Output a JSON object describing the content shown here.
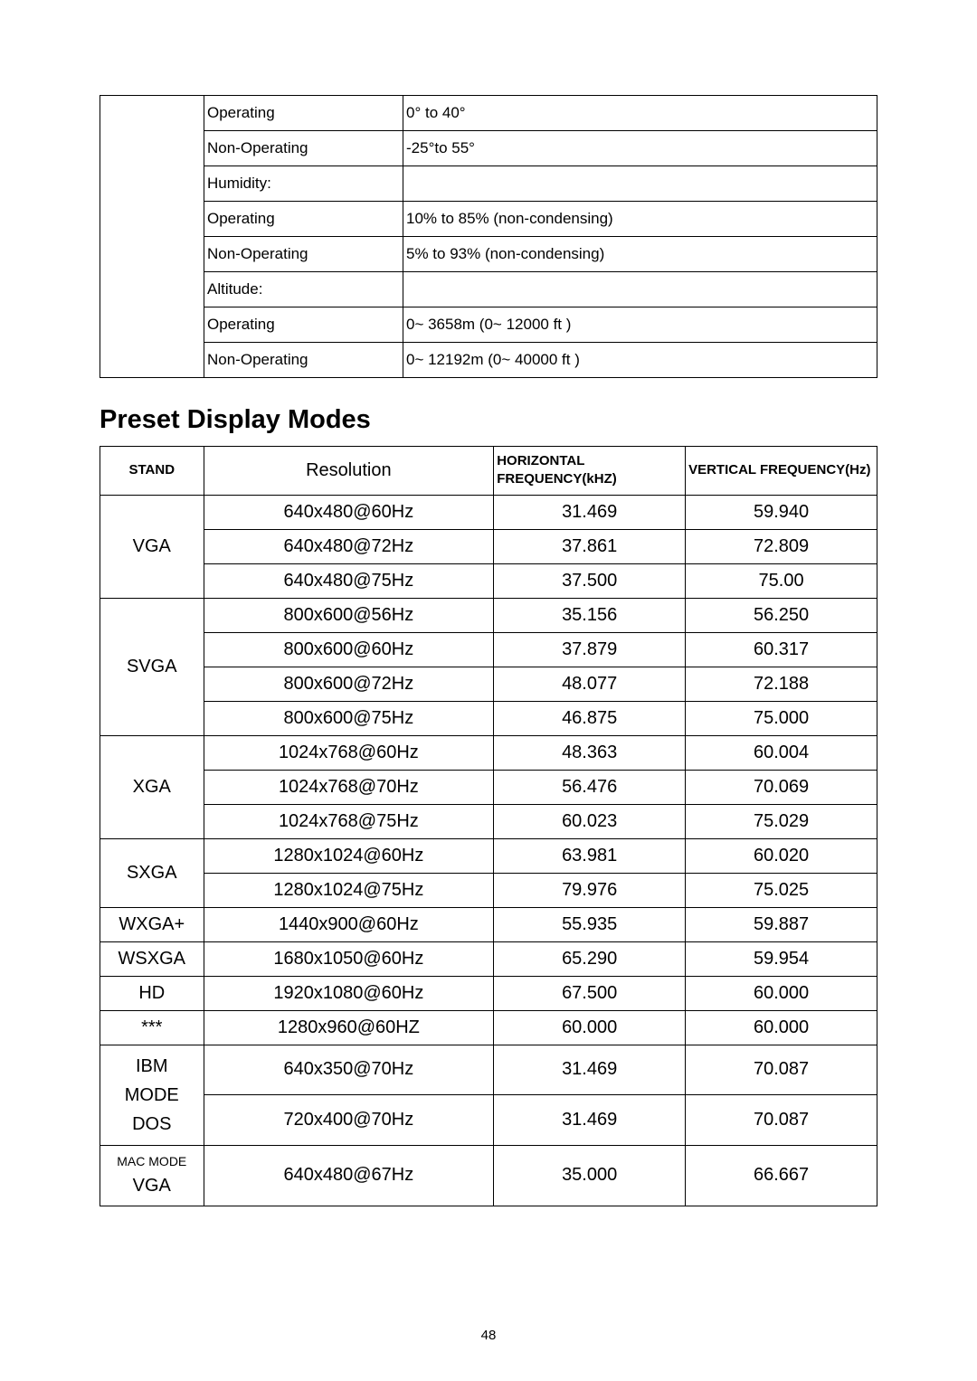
{
  "env_table": {
    "rows": [
      {
        "label": "Operating",
        "value": "0° to 40°"
      },
      {
        "label": "Non-Operating",
        "value": "-25°to 55°"
      },
      {
        "label": "Humidity:",
        "value": ""
      },
      {
        "label": "Operating",
        "value": "10% to 85% (non-condensing)"
      },
      {
        "label": "Non-Operating",
        "value": "5% to 93% (non-condensing)"
      },
      {
        "label": "Altitude:",
        "value": ""
      },
      {
        "label": "Operating",
        "value": "0~ 3658m (0~ 12000 ft )"
      },
      {
        "label": "Non-Operating",
        "value": "0~ 12192m (0~ 40000 ft )"
      }
    ]
  },
  "section_title": "Preset Display Modes",
  "modes_table": {
    "headers": {
      "stand": "STAND",
      "resolution": "Resolution",
      "hfreq": "HORIZONTAL FREQUENCY(kHZ)",
      "vfreq": "VERTICAL FREQUENCY(Hz)"
    },
    "groups": [
      {
        "stand": "VGA",
        "small": false,
        "rows": [
          {
            "res": "640x480@60Hz",
            "h": "31.469",
            "v": "59.940"
          },
          {
            "res": "640x480@72Hz",
            "h": "37.861",
            "v": "72.809"
          },
          {
            "res": "640x480@75Hz",
            "h": "37.500",
            "v": "75.00"
          }
        ]
      },
      {
        "stand": "SVGA",
        "small": false,
        "rows": [
          {
            "res": "800x600@56Hz",
            "h": "35.156",
            "v": "56.250"
          },
          {
            "res": "800x600@60Hz",
            "h": "37.879",
            "v": "60.317"
          },
          {
            "res": "800x600@72Hz",
            "h": "48.077",
            "v": "72.188"
          },
          {
            "res": "800x600@75Hz",
            "h": "46.875",
            "v": "75.000"
          }
        ]
      },
      {
        "stand": "XGA",
        "small": false,
        "rows": [
          {
            "res": "1024x768@60Hz",
            "h": "48.363",
            "v": "60.004"
          },
          {
            "res": "1024x768@70Hz",
            "h": "56.476",
            "v": "70.069"
          },
          {
            "res": "1024x768@75Hz",
            "h": "60.023",
            "v": "75.029"
          }
        ]
      },
      {
        "stand": "SXGA",
        "small": false,
        "rows": [
          {
            "res": "1280x1024@60Hz",
            "h": "63.981",
            "v": "60.020"
          },
          {
            "res": "1280x1024@75Hz",
            "h": "79.976",
            "v": "75.025"
          }
        ]
      },
      {
        "stand": "WXGA+",
        "small": false,
        "rows": [
          {
            "res": "1440x900@60Hz",
            "h": "55.935",
            "v": "59.887"
          }
        ]
      },
      {
        "stand": "WSXGA",
        "small": false,
        "rows": [
          {
            "res": "1680x1050@60Hz",
            "h": "65.290",
            "v": "59.954"
          }
        ]
      },
      {
        "stand": "HD",
        "small": false,
        "rows": [
          {
            "res": "1920x1080@60Hz",
            "h": "67.500",
            "v": "60.000"
          }
        ]
      },
      {
        "stand": "***",
        "small": false,
        "rows": [
          {
            "res": "1280x960@60HZ",
            "h": "60.000",
            "v": "60.000"
          }
        ]
      },
      {
        "stand": "IBM MODE DOS",
        "small": false,
        "rows": [
          {
            "res": "640x350@70Hz",
            "h": "31.469",
            "v": "70.087"
          },
          {
            "res": "720x400@70Hz",
            "h": "31.469",
            "v": "70.087"
          }
        ]
      },
      {
        "stand": "MAC MODE VGA",
        "small": true,
        "rows": [
          {
            "res": "640x480@67Hz",
            "h": "35.000",
            "v": "66.667"
          }
        ]
      }
    ]
  },
  "page_number": "48"
}
